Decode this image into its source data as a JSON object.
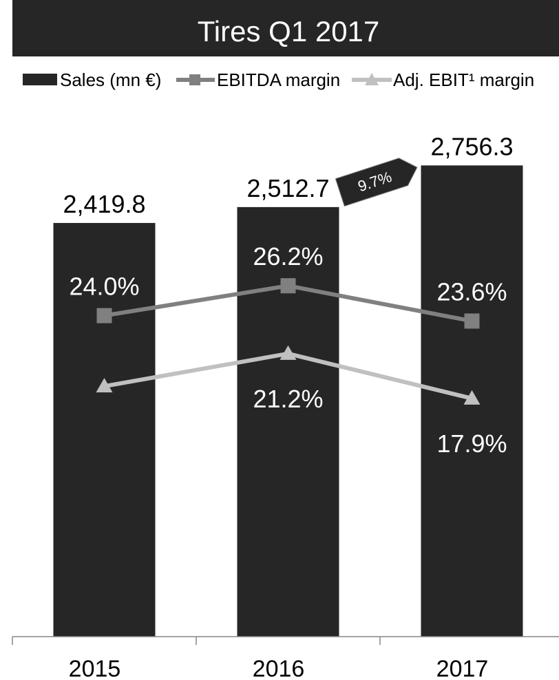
{
  "colors": {
    "title_background": "#262626",
    "title_text": "#ffffff",
    "sales_bar": "#262626",
    "ebitda_line": "#808080",
    "adj_ebit_line": "#c0c0c0",
    "axis": "#868686",
    "label_above_bar": "#000000",
    "label_on_bar": "#ffffff"
  },
  "chart_data": {
    "type": "bar",
    "title": "Tires Q1 2017",
    "categories": [
      "2015",
      "2016",
      "2017"
    ],
    "series": [
      {
        "name": "Sales (mn €)",
        "type": "bar",
        "values": [
          2419.8,
          2512.7,
          2756.3
        ],
        "data_labels": [
          "2,419.8",
          "2,512.7",
          "2,756.3"
        ]
      },
      {
        "name": "EBITDA margin",
        "type": "line",
        "marker": "square",
        "values": [
          24.0,
          26.2,
          23.6
        ],
        "data_labels": [
          "24.0%",
          "26.2%",
          "23.6%"
        ]
      },
      {
        "name": "Adj. EBIT¹ margin",
        "type": "line",
        "marker": "triangle",
        "values": [
          18.8,
          21.2,
          17.9
        ],
        "data_labels": [
          null,
          "21.2%",
          "17.9%"
        ]
      }
    ],
    "ylim": [
      0,
      3100
    ],
    "y2lim": [
      0,
      40
    ],
    "grid": false,
    "legend": "top",
    "annotations": [
      {
        "text": "9.7%"
      }
    ]
  }
}
